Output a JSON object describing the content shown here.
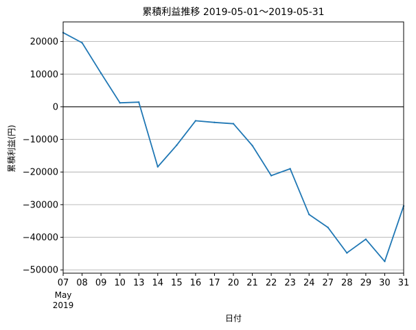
{
  "chart_data": {
    "type": "line",
    "title": "累積利益推移  2019-05-01〜2019-05-31",
    "xlabel": "日付",
    "ylabel": "累積利益(円)",
    "x": [
      "2019-05-07",
      "2019-05-08",
      "2019-05-09",
      "2019-05-10",
      "2019-05-13",
      "2019-05-14",
      "2019-05-15",
      "2019-05-16",
      "2019-05-17",
      "2019-05-20",
      "2019-05-21",
      "2019-05-22",
      "2019-05-23",
      "2019-05-24",
      "2019-05-27",
      "2019-05-28",
      "2019-05-29",
      "2019-05-30",
      "2019-05-31"
    ],
    "x_tick_labels": [
      "07",
      "08",
      "09",
      "10",
      "13",
      "14",
      "15",
      "16",
      "17",
      "20",
      "21",
      "22",
      "23",
      "24",
      "27",
      "28",
      "29",
      "30",
      "31"
    ],
    "x_secondary_labels": [
      "May",
      "2019"
    ],
    "series": [
      {
        "values": [
          22700,
          19600,
          10300,
          1200,
          1400,
          -18400,
          -11800,
          -4300,
          -4800,
          -5200,
          -11900,
          -21100,
          -19000,
          -33000,
          -37000,
          -44800,
          -40600,
          -47400,
          -30400
        ],
        "color": "#1f77b4"
      }
    ],
    "ylim": [
      -51000,
      26000
    ],
    "y_ticks": [
      20000,
      10000,
      0,
      -10000,
      -20000,
      -30000,
      -40000,
      -50000
    ],
    "y_tick_labels": [
      "20000",
      "10000",
      "0",
      "−10000",
      "−20000",
      "−30000",
      "−40000",
      "−50000"
    ],
    "zero_line": true,
    "grid": "horizontal",
    "grid_color": "#b0b0b0"
  }
}
